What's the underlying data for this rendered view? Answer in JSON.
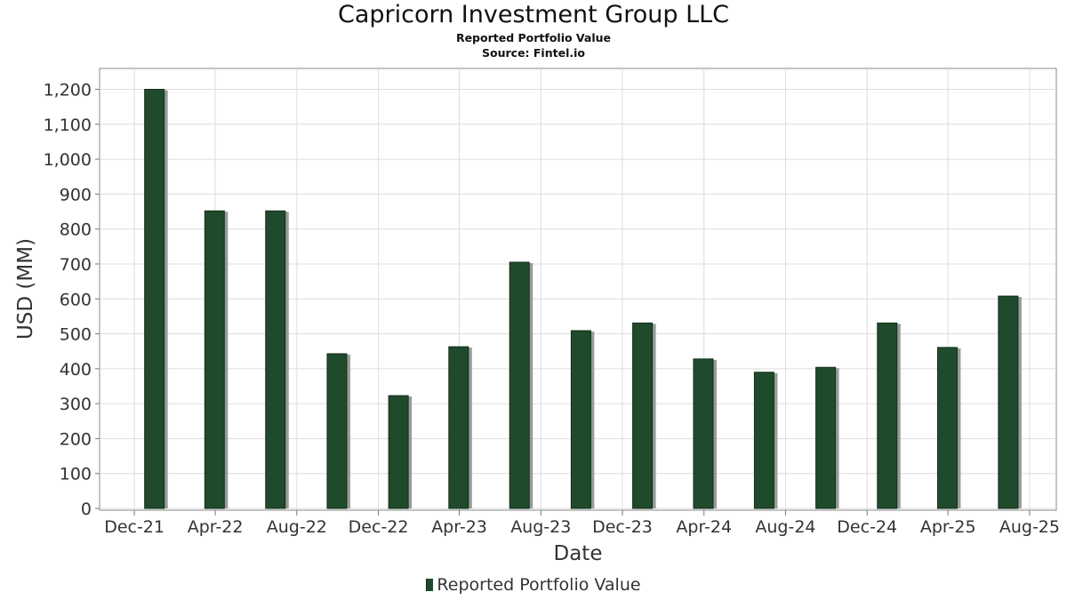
{
  "chart_data": {
    "type": "bar",
    "title": "Capricorn Investment Group LLC",
    "subtitle_lines": [
      "Reported Portfolio Value",
      "Source: Fintel.io"
    ],
    "xlabel": "Date",
    "ylabel": "USD (MM)",
    "ylim": [
      0,
      1270
    ],
    "yticks": [
      0,
      100,
      200,
      300,
      400,
      500,
      600,
      700,
      800,
      900,
      1000,
      1100,
      1200
    ],
    "ytick_labels": [
      "0",
      "100",
      "200",
      "300",
      "400",
      "500",
      "600",
      "700",
      "800",
      "900",
      "1,000",
      "1,100",
      "1,200"
    ],
    "xticks": [
      "2021-12-01",
      "2022-04-01",
      "2022-08-01",
      "2022-12-01",
      "2023-04-01",
      "2023-08-01",
      "2023-12-01",
      "2024-04-01",
      "2024-08-01",
      "2024-12-01",
      "2025-04-01",
      "2025-08-01"
    ],
    "xtick_labels": [
      "Dec-21",
      "Apr-22",
      "Aug-22",
      "Dec-22",
      "Apr-23",
      "Aug-23",
      "Dec-23",
      "Apr-24",
      "Aug-24",
      "Dec-24",
      "Apr-25",
      "Aug-25"
    ],
    "xlim": [
      "2021-10-10",
      "2025-09-10"
    ],
    "grid": true,
    "legend_position": "bottom",
    "series": [
      {
        "name": "Reported Portfolio Value",
        "color": "#1f4a2b",
        "x": [
          "2021-12-31",
          "2022-03-31",
          "2022-06-30",
          "2022-09-30",
          "2022-12-31",
          "2023-03-31",
          "2023-06-30",
          "2023-09-30",
          "2023-12-31",
          "2024-03-31",
          "2024-06-30",
          "2024-09-30",
          "2024-12-31",
          "2025-03-31",
          "2025-06-30"
        ],
        "values": [
          1200,
          852,
          852,
          443,
          323,
          463,
          705,
          509,
          531,
          428,
          390,
          404,
          531,
          461,
          608
        ]
      }
    ]
  }
}
